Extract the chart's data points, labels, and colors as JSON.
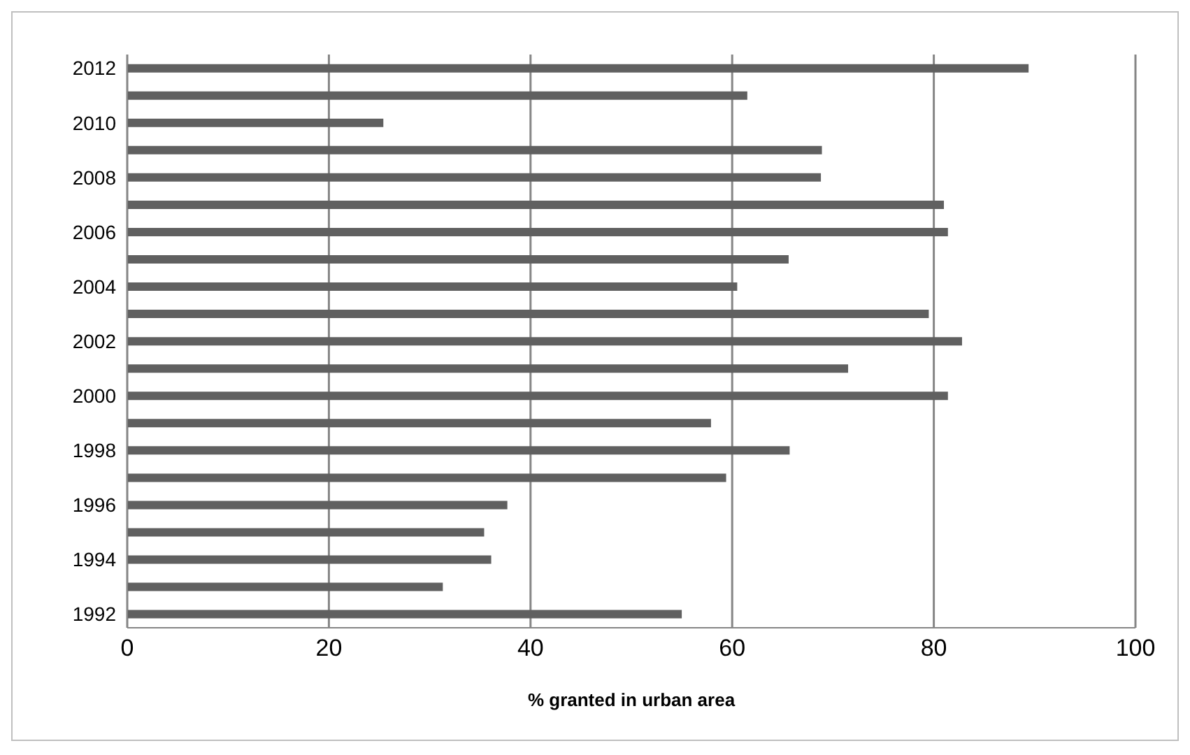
{
  "chart_data": {
    "type": "bar",
    "orientation": "horizontal",
    "xlabel": "% granted in urban area",
    "categories": [
      "2012",
      null,
      "2010",
      null,
      "2008",
      null,
      "2006",
      null,
      "2004",
      null,
      "2002",
      null,
      "2000",
      null,
      "1998",
      null,
      "1996",
      null,
      "1994",
      null,
      "1992"
    ],
    "values": [
      89.4,
      61.5,
      25.4,
      68.9,
      68.8,
      81.0,
      81.4,
      65.6,
      60.5,
      79.5,
      82.8,
      71.5,
      81.4,
      57.9,
      65.7,
      59.4,
      37.7,
      35.4,
      36.1,
      31.3,
      55.0
    ],
    "color": "#606060",
    "xlim": [
      0,
      100
    ],
    "xticks": [
      0,
      20,
      40,
      60,
      80,
      100
    ],
    "grid": "x",
    "legend": false
  }
}
